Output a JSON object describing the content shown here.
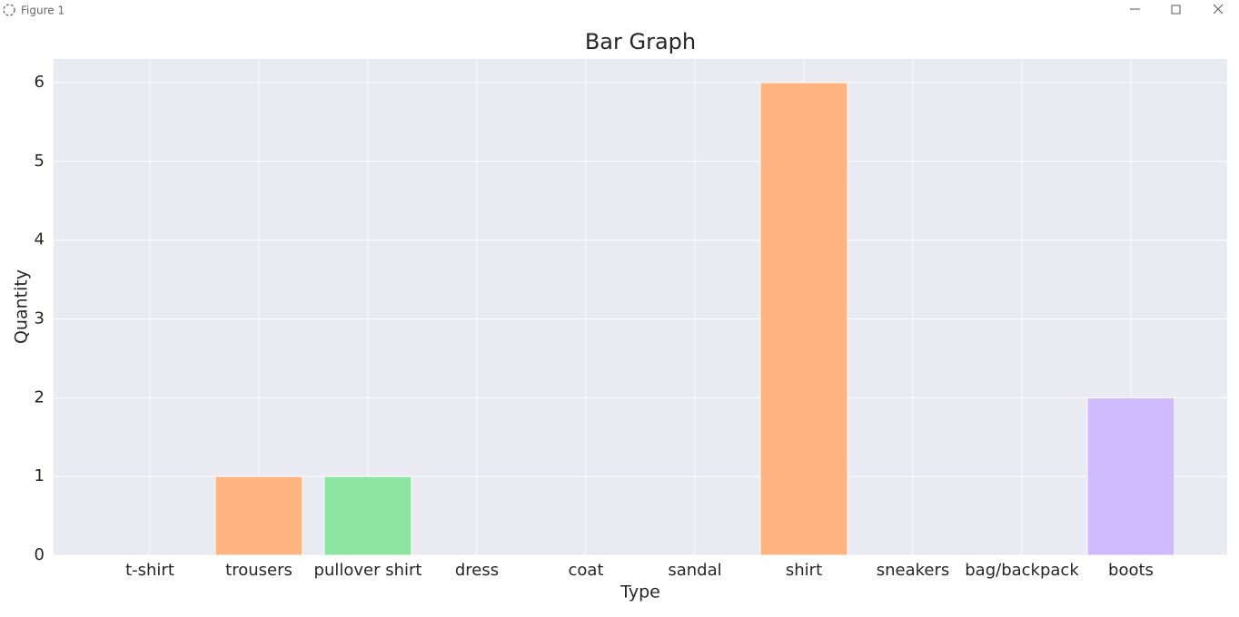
{
  "window": {
    "title": "Figure 1"
  },
  "chart_data": {
    "type": "bar",
    "title": "Bar Graph",
    "x_label": "Type",
    "y_label": "Quantity",
    "categories": [
      "t-shirt",
      "trousers",
      "pullover shirt",
      "dress",
      "coat",
      "sandal",
      "shirt",
      "sneakers",
      "bag/backpack",
      "boots"
    ],
    "values": [
      0,
      1,
      1,
      0,
      0,
      0,
      6,
      0,
      0,
      2
    ],
    "colors": [
      "#a1c9f4",
      "#ffb482",
      "#8de5a1",
      "#ff9f9b",
      "#d0bbff",
      "#debb9b",
      "#ffb482",
      "#cfcfcf",
      "#fffea3",
      "#d0bbff"
    ],
    "ylim": [
      0,
      6.3
    ],
    "yticks": [
      0,
      1,
      2,
      3,
      4,
      5,
      6
    ],
    "grid": true
  }
}
